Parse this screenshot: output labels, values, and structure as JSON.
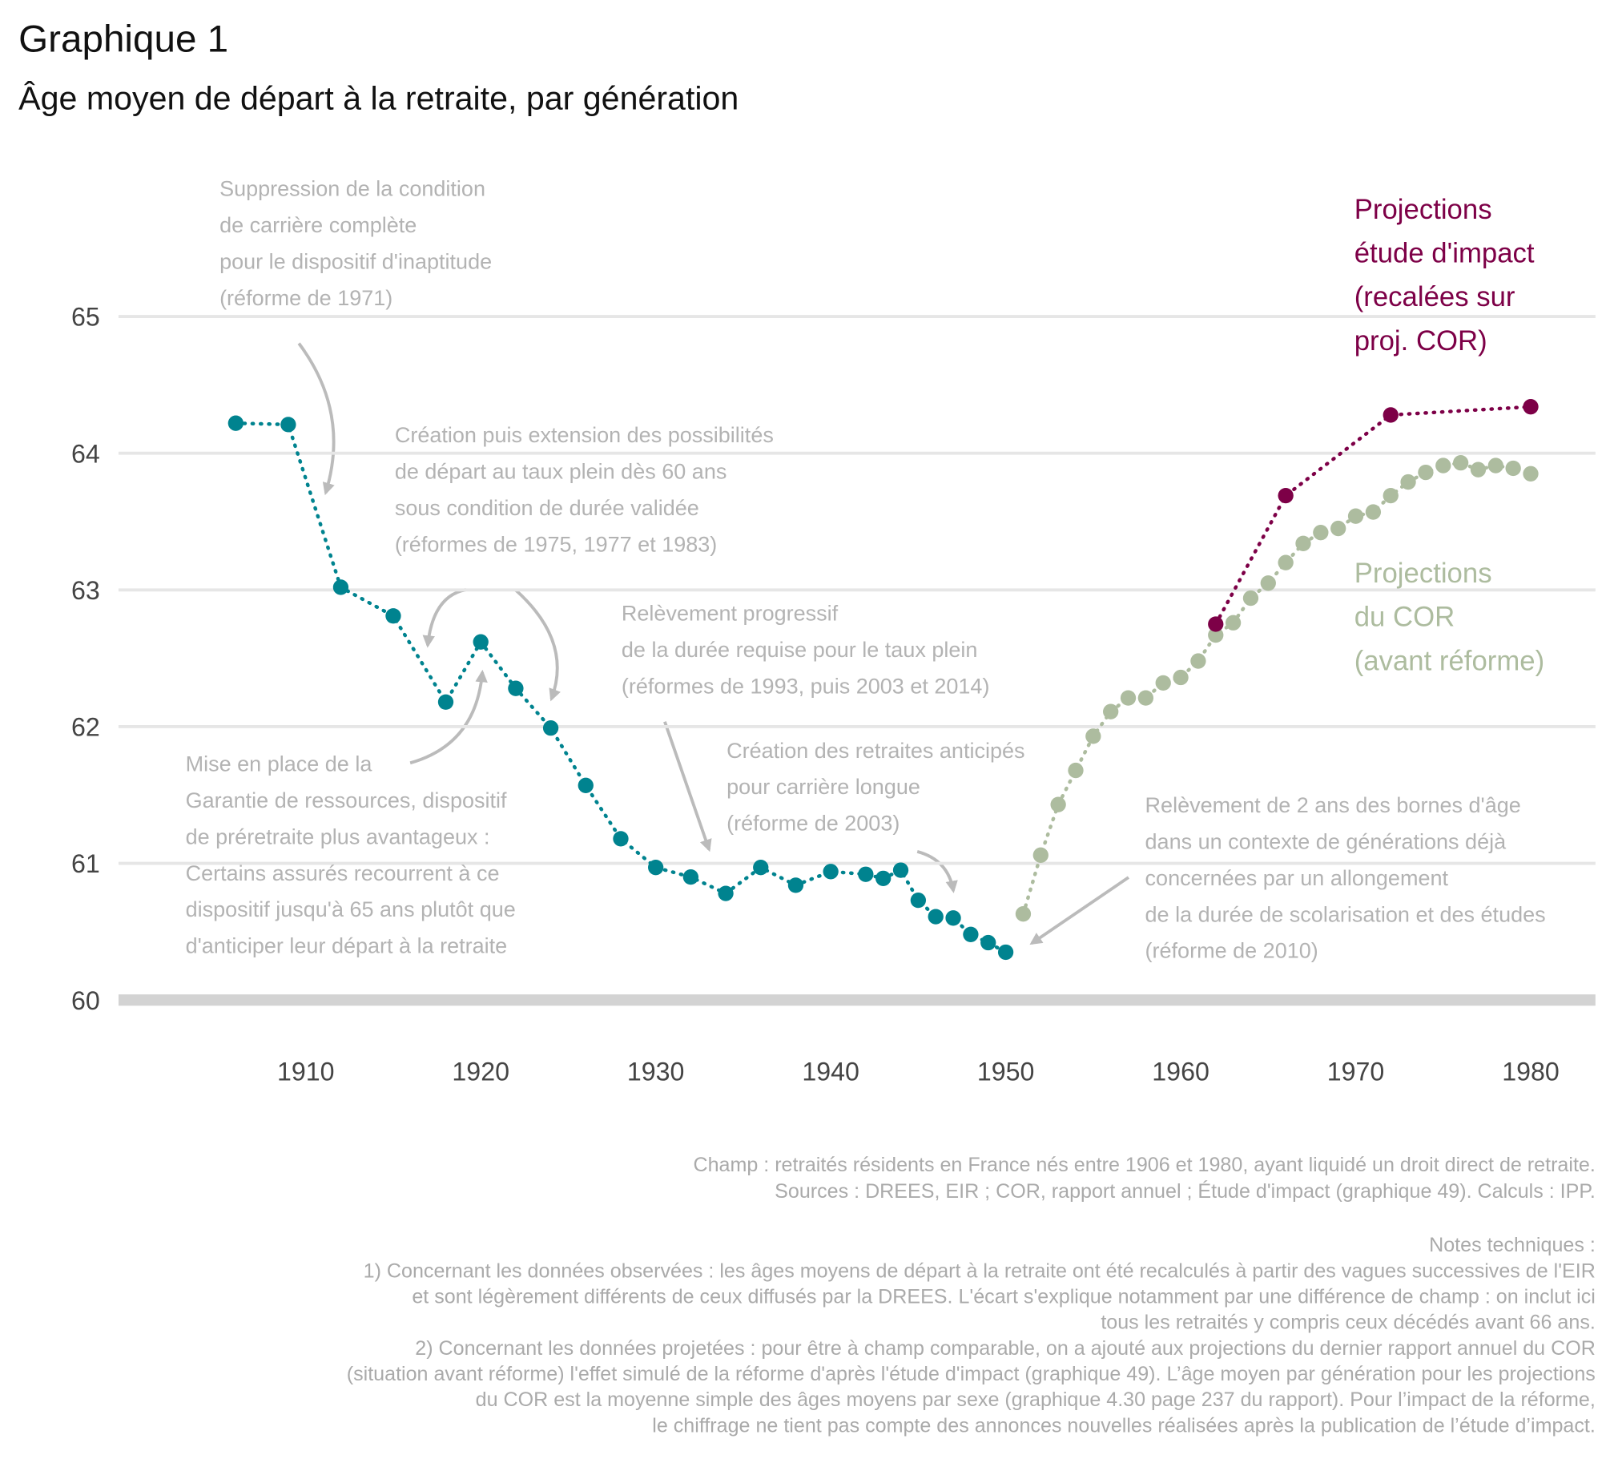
{
  "chart_data": {
    "type": "scatter",
    "title": "Graphique 1",
    "subtitle": "Âge moyen de départ à la retraite, par génération",
    "xlim": [
      1899.3,
      1983.7
    ],
    "ylim": [
      60,
      65
    ],
    "xticks": [
      1910,
      1920,
      1930,
      1940,
      1950,
      1960,
      1970,
      1980
    ],
    "yticks": [
      60,
      61,
      62,
      63,
      64,
      65
    ],
    "grid": true,
    "series": [
      {
        "color": "#00838f",
        "x": [
          1906,
          1909,
          1912,
          1915,
          1918,
          1920,
          1922,
          1924,
          1926,
          1928,
          1930,
          1932,
          1934,
          1936,
          1938,
          1940,
          1942,
          1943,
          1944,
          1945,
          1946,
          1947,
          1948,
          1949,
          1950
        ],
        "values": [
          64.22,
          64.21,
          63.02,
          62.81,
          62.18,
          62.62,
          62.28,
          61.99,
          61.57,
          61.18,
          60.97,
          60.9,
          60.78,
          60.97,
          60.84,
          60.94,
          60.92,
          60.89,
          60.95,
          60.73,
          60.61,
          60.6,
          60.48,
          60.42,
          60.35
        ]
      },
      {
        "name": [
          "Projections",
          "du COR",
          "(avant réforme)"
        ],
        "color": "#adbc9f",
        "x": [
          1951,
          1952,
          1953,
          1954,
          1955,
          1956,
          1957,
          1958,
          1959,
          1960,
          1961,
          1962,
          1963,
          1964,
          1965,
          1966,
          1967,
          1968,
          1969,
          1970,
          1971,
          1972,
          1973,
          1974,
          1975,
          1976,
          1977,
          1978,
          1979,
          1980
        ],
        "values": [
          60.63,
          61.06,
          61.43,
          61.68,
          61.93,
          62.11,
          62.21,
          62.21,
          62.32,
          62.36,
          62.48,
          62.67,
          62.76,
          62.94,
          63.05,
          63.2,
          63.34,
          63.42,
          63.45,
          63.54,
          63.57,
          63.69,
          63.79,
          63.86,
          63.91,
          63.93,
          63.88,
          63.91,
          63.89,
          63.85
        ]
      },
      {
        "name": [
          "Projections",
          "étude d'impact",
          "(recalées sur",
          "proj. COR)"
        ],
        "color": "#7d0047",
        "x": [
          1962,
          1966,
          1972,
          1980
        ],
        "values": [
          62.75,
          63.69,
          64.28,
          64.34
        ]
      }
    ],
    "annotations": [
      [
        "Suppression de la condition",
        "de carrière complète",
        "pour le dispositif d'inaptitude",
        "(réforme de 1971)"
      ],
      [
        "Création puis extension des possibilités",
        "de départ au taux plein dès 60 ans",
        "sous condition de durée validée",
        "(réformes de 1975, 1977 et 1983)"
      ],
      [
        "Relèvement progressif",
        "de la durée requise pour le taux plein",
        "(réformes de 1993, puis 2003 et 2014)"
      ],
      [
        "Création des retraites anticipés",
        "pour carrière longue",
        "(réforme de 2003)"
      ],
      [
        "Mise en place de la",
        "Garantie de ressources, dispositif",
        "de préretraite plus avantageux :",
        "Certains assurés recourrent à ce",
        "dispositif jusqu'à 65 ans plutôt que",
        "d'anticiper leur départ à la retraite"
      ],
      [
        "Relèvement de 2 ans des bornes d'âge",
        "dans un contexte de générations déjà",
        "concernées par un allongement",
        "de la durée de scolarisation et des études",
        "(réforme de 2010)"
      ]
    ],
    "notes": [
      "Champ : retraités résidents en France nés entre 1906 et 1980, ayant liquidé un droit direct de retraite.",
      "Sources : DREES, EIR ; COR, rapport annuel ; Étude d'impact (graphique 49). Calculs : IPP.",
      "Notes techniques :",
      "1) Concernant les données observées : les âges moyens de départ à la retraite ont été recalculés à partir des vagues successives de l'EIR",
      "et sont légèrement différents de ceux diffusés par la DREES. L'écart s'explique notamment par une différence de champ : on inclut ici",
      "tous les retraités y compris ceux décédés avant 66 ans.",
      "2) Concernant les données projetées : pour être à champ comparable, on a ajouté aux projections du dernier rapport annuel du COR",
      "(situation avant réforme) l'effet simulé de la réforme d'après l'étude d'impact (graphique 49). L’âge moyen par génération pour les projections",
      "du COR est la moyenne simple des âges moyens par sexe (graphique 4.30 page 237 du rapport). Pour l’impact de la réforme,",
      "le chiffrage ne tient pas compte des annonces nouvelles réalisées après la publication de l’étude d’impact."
    ]
  }
}
